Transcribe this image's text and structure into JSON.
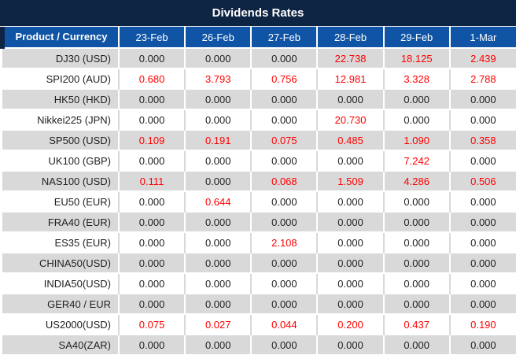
{
  "title": "Dividends Rates",
  "colors": {
    "title_bg": "#0e2443",
    "header_bg": "#1054a5",
    "header_text": "#ffffff",
    "row_alt_bg": "#d9d9d9",
    "row_bg": "#ffffff",
    "zero_text": "#1f1f1f",
    "nonzero_text": "#ff0000"
  },
  "chart_data": {
    "type": "table",
    "title": "Dividends Rates",
    "columns": [
      "Product / Currency",
      "23-Feb",
      "26-Feb",
      "27-Feb",
      "28-Feb",
      "29-Feb",
      "1-Mar"
    ],
    "rows": [
      {
        "product": "DJ30 (USD)",
        "values": [
          "0.000",
          "0.000",
          "0.000",
          "22.738",
          "18.125",
          "2.439"
        ]
      },
      {
        "product": "SPI200 (AUD)",
        "values": [
          "0.680",
          "3.793",
          "0.756",
          "12.981",
          "3.328",
          "2.788"
        ]
      },
      {
        "product": "HK50 (HKD)",
        "values": [
          "0.000",
          "0.000",
          "0.000",
          "0.000",
          "0.000",
          "0.000"
        ]
      },
      {
        "product": "Nikkei225 (JPN)",
        "values": [
          "0.000",
          "0.000",
          "0.000",
          "20.730",
          "0.000",
          "0.000"
        ]
      },
      {
        "product": "SP500 (USD)",
        "values": [
          "0.109",
          "0.191",
          "0.075",
          "0.485",
          "1.090",
          "0.358"
        ]
      },
      {
        "product": "UK100 (GBP)",
        "values": [
          "0.000",
          "0.000",
          "0.000",
          "0.000",
          "7.242",
          "0.000"
        ]
      },
      {
        "product": "NAS100 (USD)",
        "values": [
          "0.111",
          "0.000",
          "0.068",
          "1.509",
          "4.286",
          "0.506"
        ]
      },
      {
        "product": "EU50 (EUR)",
        "values": [
          "0.000",
          "0.644",
          "0.000",
          "0.000",
          "0.000",
          "0.000"
        ]
      },
      {
        "product": "FRA40 (EUR)",
        "values": [
          "0.000",
          "0.000",
          "0.000",
          "0.000",
          "0.000",
          "0.000"
        ]
      },
      {
        "product": "ES35 (EUR)",
        "values": [
          "0.000",
          "0.000",
          "2.108",
          "0.000",
          "0.000",
          "0.000"
        ]
      },
      {
        "product": "CHINA50(USD)",
        "values": [
          "0.000",
          "0.000",
          "0.000",
          "0.000",
          "0.000",
          "0.000"
        ]
      },
      {
        "product": "INDIA50(USD)",
        "values": [
          "0.000",
          "0.000",
          "0.000",
          "0.000",
          "0.000",
          "0.000"
        ]
      },
      {
        "product": "GER40 / EUR",
        "values": [
          "0.000",
          "0.000",
          "0.000",
          "0.000",
          "0.000",
          "0.000"
        ]
      },
      {
        "product": "US2000(USD)",
        "values": [
          "0.075",
          "0.027",
          "0.044",
          "0.200",
          "0.437",
          "0.190"
        ]
      },
      {
        "product": "SA40(ZAR)",
        "values": [
          "0.000",
          "0.000",
          "0.000",
          "0.000",
          "0.000",
          "0.000"
        ]
      }
    ]
  }
}
